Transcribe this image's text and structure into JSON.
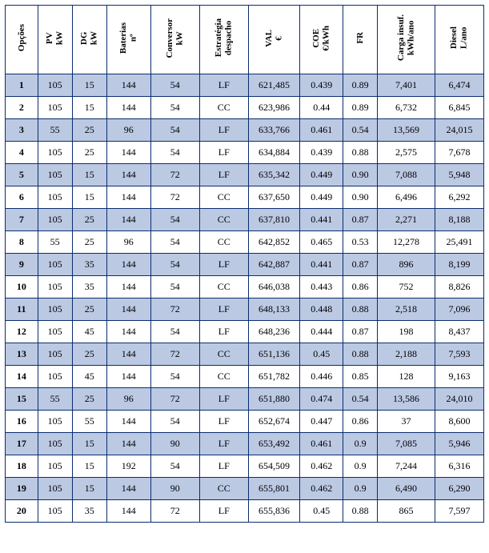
{
  "table": {
    "columns": [
      {
        "line1": "Opções",
        "line2": ""
      },
      {
        "line1": "PV",
        "line2": "kW"
      },
      {
        "line1": "DG",
        "line2": "kW"
      },
      {
        "line1": "Baterias",
        "line2": "nº"
      },
      {
        "line1": "Conversor",
        "line2": "kW"
      },
      {
        "line1": "Estratégia",
        "line2": "despacho"
      },
      {
        "line1": "VAL",
        "line2": "€"
      },
      {
        "line1": "COE",
        "line2": "€/kWh"
      },
      {
        "line1": "FR",
        "line2": ""
      },
      {
        "line1": "Carga insuf.",
        "line2": "kWh/ano"
      },
      {
        "line1": "Diesel",
        "line2": "L/ano"
      }
    ],
    "rows": [
      [
        "1",
        "105",
        "15",
        "144",
        "54",
        "LF",
        "621,485",
        "0.439",
        "0.89",
        "7,401",
        "6,474"
      ],
      [
        "2",
        "105",
        "15",
        "144",
        "54",
        "CC",
        "623,986",
        "0.44",
        "0.89",
        "6,732",
        "6,845"
      ],
      [
        "3",
        "55",
        "25",
        "96",
        "54",
        "LF",
        "633,766",
        "0.461",
        "0.54",
        "13,569",
        "24,015"
      ],
      [
        "4",
        "105",
        "25",
        "144",
        "54",
        "LF",
        "634,884",
        "0.439",
        "0.88",
        "2,575",
        "7,678"
      ],
      [
        "5",
        "105",
        "15",
        "144",
        "72",
        "LF",
        "635,342",
        "0.449",
        "0.90",
        "7,088",
        "5,948"
      ],
      [
        "6",
        "105",
        "15",
        "144",
        "72",
        "CC",
        "637,650",
        "0.449",
        "0.90",
        "6,496",
        "6,292"
      ],
      [
        "7",
        "105",
        "25",
        "144",
        "54",
        "CC",
        "637,810",
        "0.441",
        "0.87",
        "2,271",
        "8,188"
      ],
      [
        "8",
        "55",
        "25",
        "96",
        "54",
        "CC",
        "642,852",
        "0.465",
        "0.53",
        "12,278",
        "25,491"
      ],
      [
        "9",
        "105",
        "35",
        "144",
        "54",
        "LF",
        "642,887",
        "0.441",
        "0.87",
        "896",
        "8,199"
      ],
      [
        "10",
        "105",
        "35",
        "144",
        "54",
        "CC",
        "646,038",
        "0.443",
        "0.86",
        "752",
        "8,826"
      ],
      [
        "11",
        "105",
        "25",
        "144",
        "72",
        "LF",
        "648,133",
        "0.448",
        "0.88",
        "2,518",
        "7,096"
      ],
      [
        "12",
        "105",
        "45",
        "144",
        "54",
        "LF",
        "648,236",
        "0.444",
        "0.87",
        "198",
        "8,437"
      ],
      [
        "13",
        "105",
        "25",
        "144",
        "72",
        "CC",
        "651,136",
        "0.45",
        "0.88",
        "2,188",
        "7,593"
      ],
      [
        "14",
        "105",
        "45",
        "144",
        "54",
        "CC",
        "651,782",
        "0.446",
        "0.85",
        "128",
        "9,163"
      ],
      [
        "15",
        "55",
        "25",
        "96",
        "72",
        "LF",
        "651,880",
        "0.474",
        "0.54",
        "13,586",
        "24,010"
      ],
      [
        "16",
        "105",
        "55",
        "144",
        "54",
        "LF",
        "652,674",
        "0.447",
        "0.86",
        "37",
        "8,600"
      ],
      [
        "17",
        "105",
        "15",
        "144",
        "90",
        "LF",
        "653,492",
        "0.461",
        "0.9",
        "7,085",
        "5,946"
      ],
      [
        "18",
        "105",
        "15",
        "192",
        "54",
        "LF",
        "654,509",
        "0.462",
        "0.9",
        "7,244",
        "6,316"
      ],
      [
        "19",
        "105",
        "15",
        "144",
        "90",
        "CC",
        "655,801",
        "0.462",
        "0.9",
        "6,490",
        "6,290"
      ],
      [
        "20",
        "105",
        "35",
        "144",
        "72",
        "LF",
        "655,836",
        "0.45",
        "0.88",
        "865",
        "7,597"
      ]
    ],
    "style": {
      "banded_odd_bg": "#bcc9e3",
      "banded_even_bg": "#ffffff",
      "border_color": "#0a2d6e",
      "font_family": "Times New Roman",
      "header_fontsize_pt": 11,
      "body_fontsize_pt": 12
    }
  }
}
